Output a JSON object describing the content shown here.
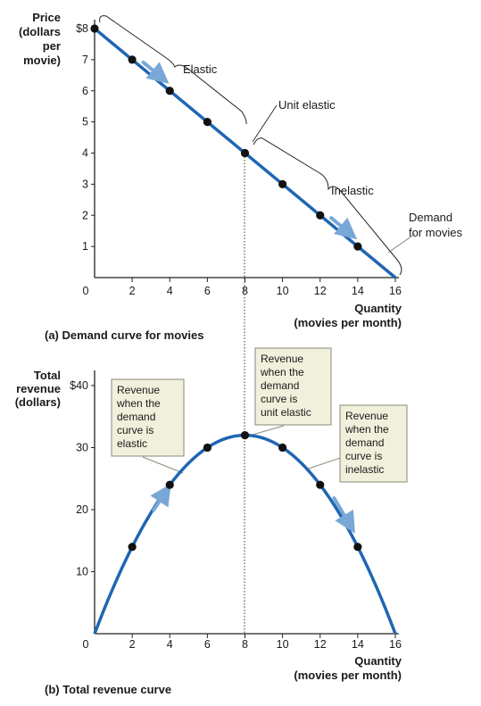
{
  "chart_data": [
    {
      "type": "line",
      "panel": "a",
      "caption": "(a) Demand curve for movies",
      "ylabel": [
        "Price",
        "(dollars",
        "per",
        "movie)"
      ],
      "xlabel": [
        "Quantity",
        "(movies per month)"
      ],
      "x_ticks": [
        "0",
        "2",
        "4",
        "6",
        "8",
        "10",
        "12",
        "14",
        "16"
      ],
      "y_ticks": [
        "$8",
        "7",
        "6",
        "5",
        "4",
        "3",
        "2",
        "1"
      ],
      "xlim": [
        0,
        16
      ],
      "ylim": [
        0,
        8
      ],
      "series": [
        {
          "name": "Demand for movies",
          "x": [
            0,
            2,
            4,
            6,
            8,
            10,
            12,
            14,
            16
          ],
          "y": [
            8,
            7,
            6,
            5,
            4,
            3,
            2,
            1,
            0
          ]
        }
      ],
      "annotations": {
        "elastic": "Elastic",
        "unit_elastic": "Unit elastic",
        "inelastic": "Inelastic",
        "curve_label": [
          "Demand",
          "for movies"
        ]
      },
      "colors": {
        "curve": "#1f66b3",
        "arrow": "#7aa8d6",
        "point": "#111111"
      }
    },
    {
      "type": "line",
      "panel": "b",
      "caption": "(b) Total revenue curve",
      "ylabel": [
        "Total",
        "revenue",
        "(dollars)"
      ],
      "xlabel": [
        "Quantity",
        "(movies per month)"
      ],
      "x_ticks": [
        "0",
        "2",
        "4",
        "6",
        "8",
        "10",
        "12",
        "14",
        "16"
      ],
      "y_ticks": [
        "$40",
        "30",
        "20",
        "10"
      ],
      "xlim": [
        0,
        16
      ],
      "ylim": [
        0,
        40
      ],
      "series": [
        {
          "name": "Total revenue",
          "x": [
            0,
            2,
            4,
            6,
            8,
            10,
            12,
            14,
            16
          ],
          "y": [
            0,
            14,
            24,
            30,
            32,
            30,
            24,
            14,
            0
          ]
        }
      ],
      "callouts": {
        "elastic": [
          "Revenue",
          "when the",
          "demand",
          "curve is",
          "elastic"
        ],
        "unit": [
          "Revenue",
          "when the",
          "demand",
          "curve is",
          "unit elastic"
        ],
        "inelastic": [
          "Revenue",
          "when the",
          "demand",
          "curve is",
          "inelastic"
        ]
      },
      "colors": {
        "curve": "#1f66b3",
        "callout_bg": "#f1f0dc",
        "callout_border": "#8a8a78"
      }
    }
  ]
}
